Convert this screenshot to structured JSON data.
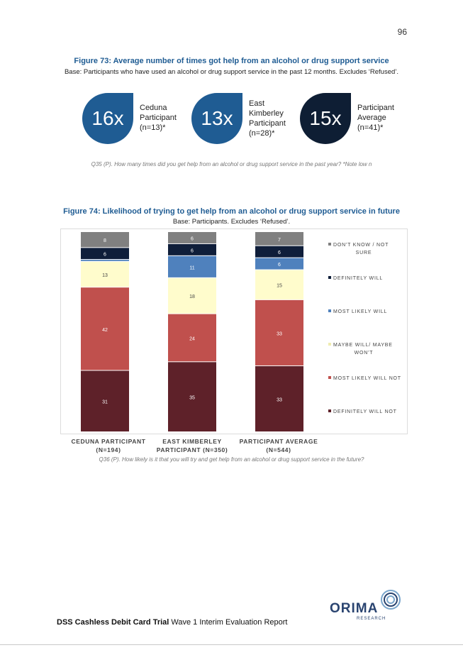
{
  "page_number": "96",
  "figure73": {
    "title": "Figure 73: Average number of times got help from an alcohol or drug support service",
    "base": "Base: Participants who have used an alcohol or drug support service in the past 12 months. Excludes ‘Refused’.",
    "stats": [
      {
        "value": "16x",
        "label": "Ceduna\nParticipant\n(n=13)*",
        "color": "#1f5c93"
      },
      {
        "value": "13x",
        "label": "East\nKimberley\nParticipant\n(n=28)*",
        "color": "#1f5c93"
      },
      {
        "value": "15x",
        "label": "Participant\nAverage\n(n=41)*",
        "color": "#0e1e34"
      }
    ],
    "question": "Q35 (P). How many times did you get help from an alcohol or drug support service in the past year? *Note low n"
  },
  "figure74": {
    "title": "Figure 74: Likelihood of trying to get help from an alcohol or drug support service in future",
    "base": "Base: Participants. Excludes ‘Refused’.",
    "question": "Q36 (P). How likely is it that you will try and get help from an alcohol or drug support service in the future?"
  },
  "chart_data": {
    "type": "bar",
    "stacked": true,
    "categories": [
      "CEDUNA PARTICIPANT\n(N=194)",
      "EAST KIMBERLEY\nPARTICIPANT (N=350)",
      "PARTICIPANT AVERAGE\n(N=544)"
    ],
    "series": [
      {
        "name": "DEFINITELY WILL NOT",
        "color": "#5e2129",
        "values": [
          31,
          35,
          33
        ]
      },
      {
        "name": "MOST LIKELY WILL NOT",
        "color": "#c0504d",
        "values": [
          42,
          24,
          33
        ]
      },
      {
        "name": "MAYBE WILL/ MAYBE WON'T",
        "color": "#fffccc",
        "values": [
          13,
          18,
          15
        ]
      },
      {
        "name": "MOST LIKELY WILL",
        "color": "#4f81bd",
        "values": [
          1,
          11,
          6
        ]
      },
      {
        "name": "DEFINITELY WILL",
        "color": "#0f1e3a",
        "values": [
          6,
          6,
          6
        ]
      },
      {
        "name": "DON'T KNOW / NOT SURE",
        "color": "#808080",
        "values": [
          8,
          6,
          7
        ]
      }
    ],
    "data_labels": [
      [
        "31",
        "42",
        "13",
        "",
        "6",
        "8"
      ],
      [
        "35",
        "24",
        "18",
        "11",
        "6",
        "6"
      ],
      [
        "33",
        "33",
        "15",
        "6",
        "6",
        "7"
      ]
    ],
    "legend_order": [
      "DON'T KNOW / NOT SURE",
      "DEFINITELY WILL",
      "MOST LIKELY WILL",
      "MAYBE WILL/ MAYBE WON'T",
      "MOST LIKELY WILL NOT",
      "DEFINITELY WILL NOT"
    ],
    "legend_position": "right",
    "ylim": [
      0,
      100
    ],
    "grid": false
  },
  "footer": {
    "bold": "DSS Cashless Debit Card Trial",
    "rest": " Wave 1 Interim Evaluation Report"
  },
  "logo": {
    "name": "ORIMA",
    "sub": "RESEARCH"
  }
}
